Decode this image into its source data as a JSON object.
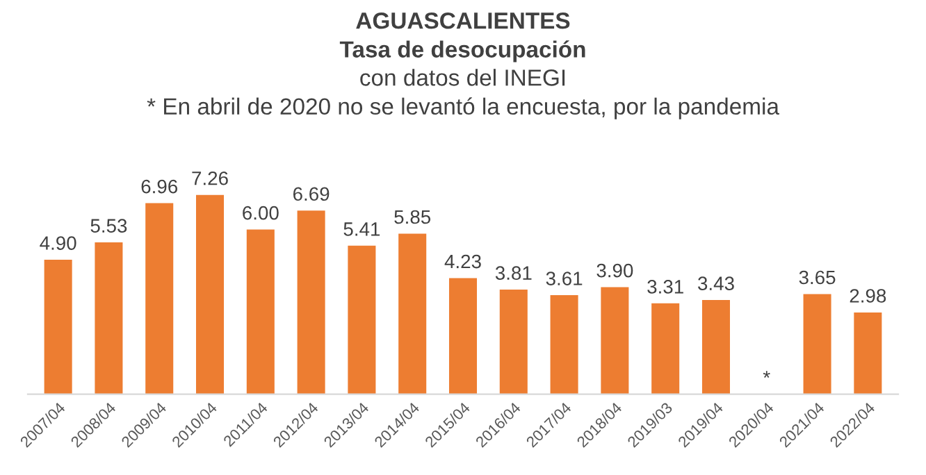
{
  "chart_data": {
    "type": "bar",
    "title": "AGUASCALIENTES",
    "subtitle": "Tasa de desocupación",
    "annotations": [
      "con datos del INEGI",
      "* En abril de 2020 no se levantó la encuesta, por la pandemia"
    ],
    "categories": [
      "2007/04",
      "2008/04",
      "2009/04",
      "2010/04",
      "2011/04",
      "2012/04",
      "2013/04",
      "2014/04",
      "2015/04",
      "2016/04",
      "2017/04",
      "2018/04",
      "2019/03",
      "2019/04",
      "2020/04",
      "2021/04",
      "2022/04"
    ],
    "values": [
      4.9,
      5.53,
      6.96,
      7.26,
      6.0,
      6.69,
      5.41,
      5.85,
      4.23,
      3.81,
      3.61,
      3.9,
      3.31,
      3.43,
      null,
      3.65,
      2.98
    ],
    "value_labels": [
      "4.90",
      "5.53",
      "6.96",
      "7.26",
      "6.00",
      "6.69",
      "5.41",
      "5.85",
      "4.23",
      "3.81",
      "3.61",
      "3.90",
      "3.31",
      "3.43",
      "*",
      "3.65",
      "2.98"
    ],
    "color": "#ed7d31",
    "grid": false,
    "legend": false
  }
}
